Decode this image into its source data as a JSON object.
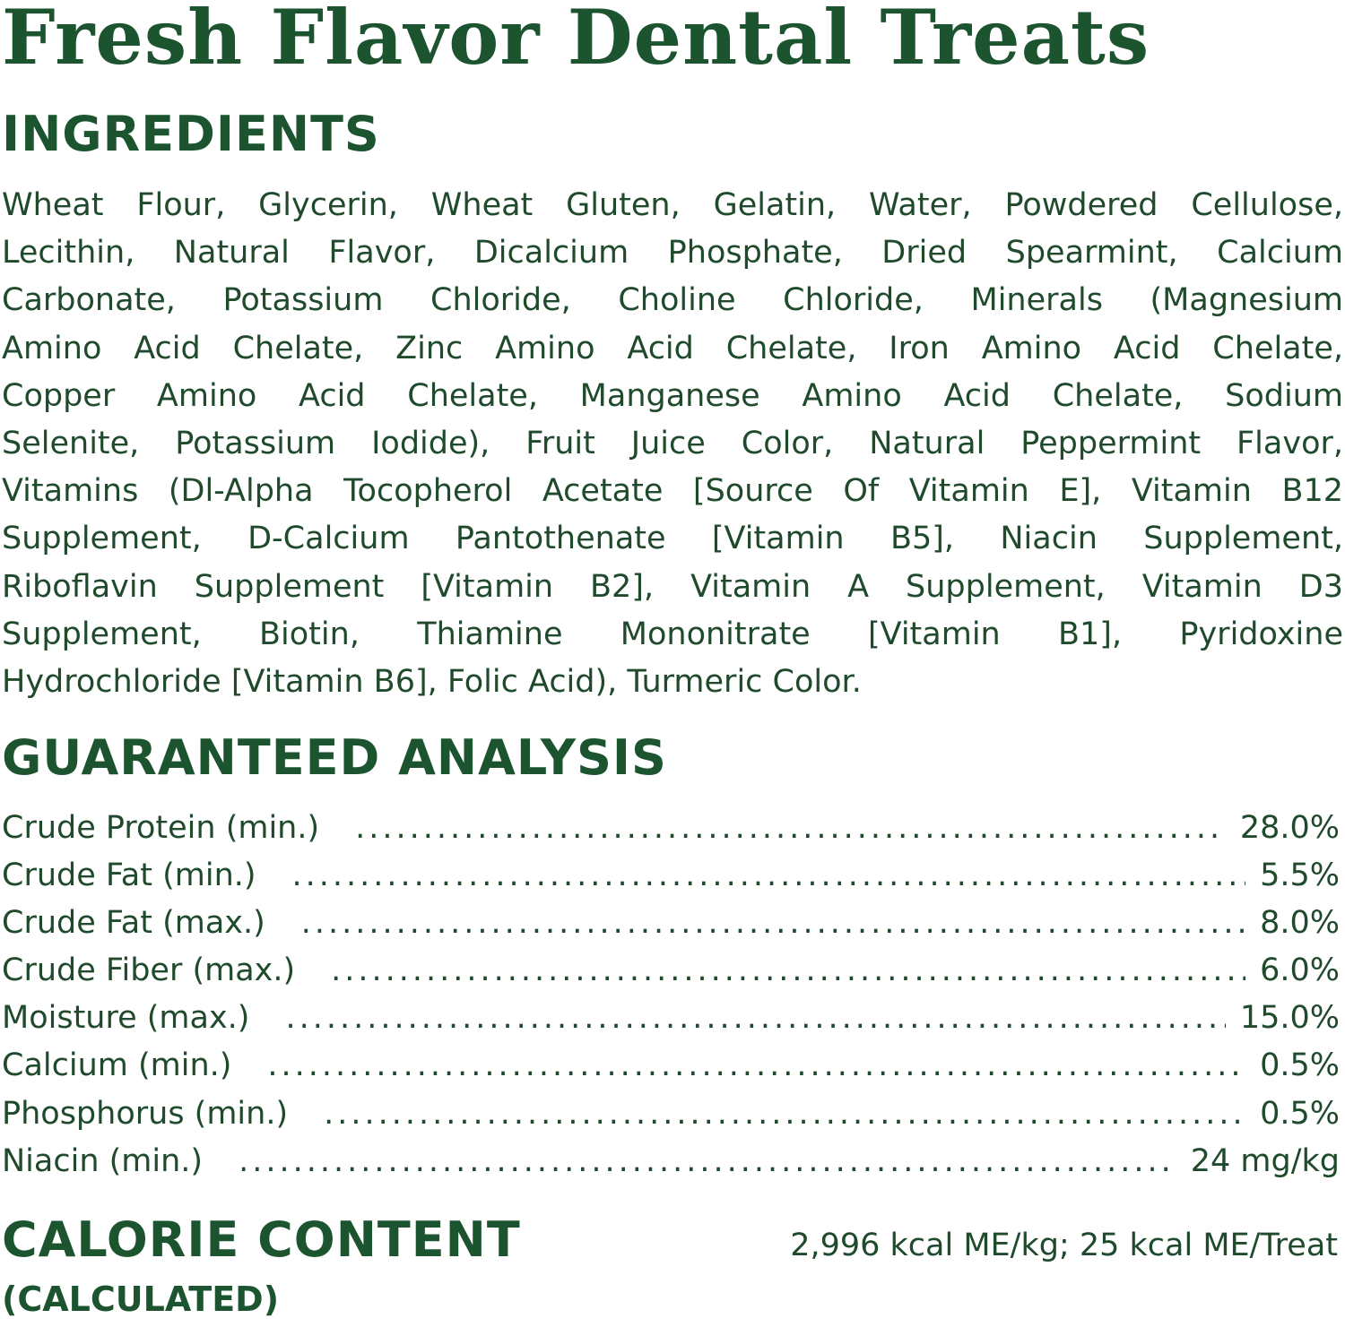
{
  "title": "Fresh Flavor Dental Treats",
  "ingredients": {
    "heading": "INGREDIENTS",
    "lines": [
      "Wheat Flour, Glycerin, Wheat Gluten, Gelatin, Water, Powdered Cellulose,",
      "Lecithin, Natural Flavor, Dicalcium Phosphate, Dried Spearmint, Calcium",
      "Carbonate, Potassium Chloride, Choline Chloride, Minerals (Magnesium",
      "Amino Acid Chelate, Zinc Amino Acid Chelate, Iron Amino Acid Chelate,",
      "Copper Amino Acid Chelate, Manganese Amino Acid Chelate, Sodium",
      "Selenite, Potassium Iodide), Fruit Juice Color, Natural Peppermint Flavor,",
      "Vitamins (Dl-Alpha Tocopherol Acetate [Source Of Vitamin E], Vitamin B12",
      "Supplement, D-Calcium Pantothenate [Vitamin B5], Niacin Supplement,",
      "Riboflavin Supplement [Vitamin B2], Vitamin A Supplement, Vitamin D3",
      "Supplement, Biotin, Thiamine Mononitrate [Vitamin B1], Pyridoxine",
      "Hydrochloride [Vitamin B6], Folic Acid), Turmeric Color."
    ]
  },
  "analysis": {
    "heading": "GUARANTEED ANALYSIS",
    "rows": [
      {
        "label": "Crude Protein (min.)",
        "value": "28.0%"
      },
      {
        "label": "Crude Fat (min.)",
        "value": "5.5%"
      },
      {
        "label": "Crude Fat (max.)",
        "value": "8.0%"
      },
      {
        "label": "Crude Fiber (max.)",
        "value": "6.0%"
      },
      {
        "label": "Moisture (max.)",
        "value": "15.0%"
      },
      {
        "label": "Calcium (min.)",
        "value": "0.5%"
      },
      {
        "label": "Phosphorus (min.)",
        "value": "0.5%"
      },
      {
        "label": "Niacin (min.)",
        "value": "24 mg/kg"
      }
    ]
  },
  "calorie": {
    "heading": "CALORIE CONTENT",
    "subheading": "(CALCULATED)",
    "value": "2,996 kcal ME/kg; 25 kcal ME/Treat"
  },
  "colors": {
    "heading": "#1d5430",
    "text": "#1f4a2c",
    "background": "#ffffff"
  }
}
